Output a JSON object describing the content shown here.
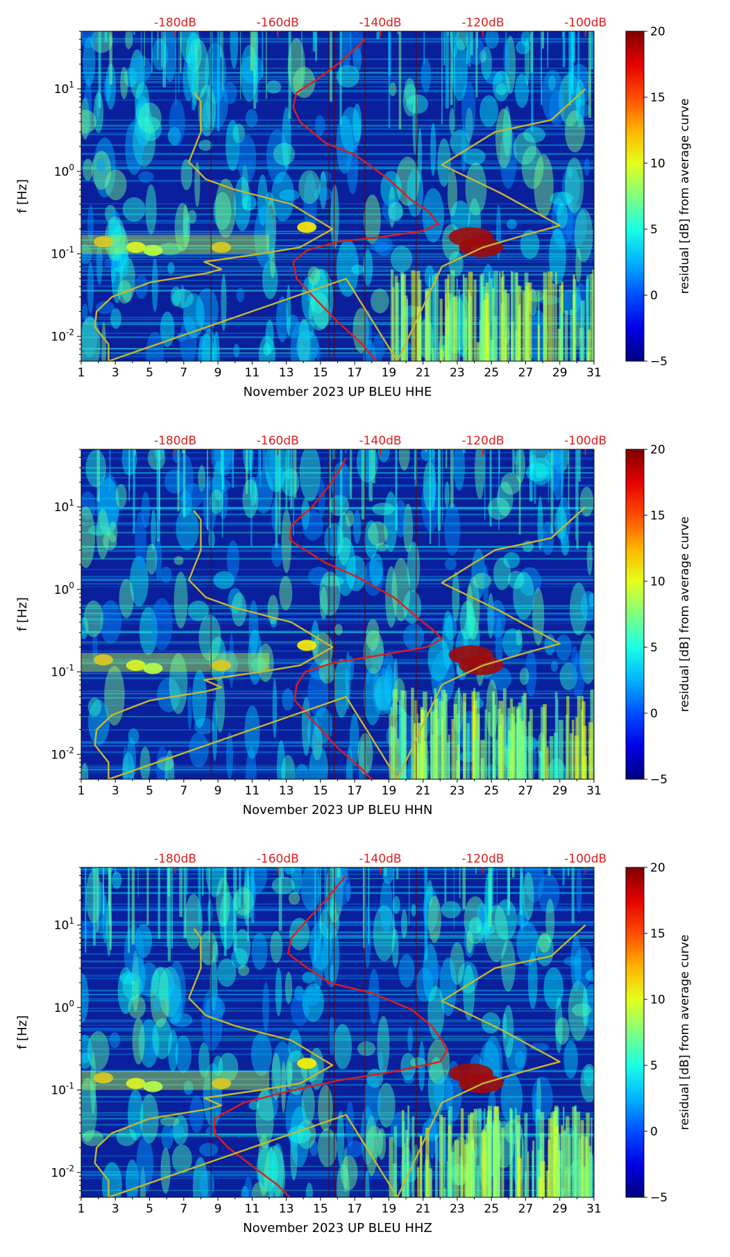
{
  "chart_data": [
    {
      "type": "heatmap",
      "title": "",
      "xlabel": "November 2023 UP BLEU  HHE",
      "ylabel": "f [Hz]",
      "x_ticks": [
        "1",
        "3",
        "5",
        "7",
        "9",
        "11",
        "13",
        "15",
        "17",
        "19",
        "21",
        "23",
        "25",
        "27",
        "29",
        "31"
      ],
      "y_ticks": [
        "10^-2",
        "10^-1",
        "10^0",
        "10^1"
      ],
      "y_range_hz": [
        0.005,
        50
      ],
      "top_axis_ticks": [
        "-180dB",
        "-160dB",
        "-140dB",
        "-120dB",
        "-100dB"
      ],
      "colorbar": {
        "label": "residual [dB] from average curve",
        "ticks": [
          "−5",
          "0",
          "5",
          "10",
          "15",
          "20"
        ],
        "range": [
          -5,
          20
        ]
      },
      "series": [
        {
          "name": "average PSD (red)",
          "color": "#e01b1b",
          "points_day_hz": [
            [
              17.6,
              40
            ],
            [
              17.0,
              30
            ],
            [
              16.0,
              20
            ],
            [
              14.8,
              13
            ],
            [
              13.6,
              9
            ],
            [
              13.4,
              6
            ],
            [
              13.8,
              4
            ],
            [
              14.2,
              3.4
            ],
            [
              15.3,
              2.2
            ],
            [
              17.0,
              1.6
            ],
            [
              19.0,
              0.8
            ],
            [
              20.3,
              0.45
            ],
            [
              21.3,
              0.33
            ],
            [
              21.9,
              0.23
            ],
            [
              21.0,
              0.19
            ],
            [
              18.5,
              0.16
            ],
            [
              16.0,
              0.14
            ],
            [
              14.2,
              0.11
            ],
            [
              13.4,
              0.08
            ],
            [
              13.6,
              0.05
            ],
            [
              14.6,
              0.03
            ],
            [
              16.0,
              0.015
            ],
            [
              17.2,
              0.009
            ],
            [
              18.3,
              0.005
            ]
          ]
        },
        {
          "name": "overlay curve (olive)",
          "color": "#c8b630",
          "points_day_hz": [
            [
              7.6,
              9
            ],
            [
              8.0,
              7
            ],
            [
              8.0,
              3
            ],
            [
              7.3,
              1.3
            ],
            [
              8.3,
              0.8
            ],
            [
              10.0,
              0.6
            ],
            [
              13.3,
              0.4
            ],
            [
              15.7,
              0.2
            ],
            [
              13.8,
              0.12
            ],
            [
              11.5,
              0.1
            ],
            [
              8.2,
              0.08
            ],
            [
              9.2,
              0.065
            ],
            [
              8.3,
              0.058
            ],
            [
              5.0,
              0.045
            ],
            [
              2.8,
              0.03
            ],
            [
              1.9,
              0.02
            ],
            [
              1.8,
              0.013
            ],
            [
              2.6,
              0.008
            ],
            [
              2.6,
              0.005
            ],
            [
              16.5,
              0.05
            ],
            [
              19.5,
              0.005
            ],
            [
              22.1,
              0.07
            ],
            [
              24.5,
              0.12
            ],
            [
              27.0,
              0.17
            ],
            [
              29.0,
              0.22
            ],
            [
              25.5,
              0.55
            ],
            [
              22.1,
              1.2
            ],
            [
              25.2,
              3
            ],
            [
              28.5,
              4.2
            ],
            [
              30.5,
              10
            ]
          ]
        }
      ]
    },
    {
      "type": "heatmap",
      "title": "",
      "xlabel": "November 2023 UP BLEU  HHN",
      "ylabel": "f [Hz]",
      "x_ticks": [
        "1",
        "3",
        "5",
        "7",
        "9",
        "11",
        "13",
        "15",
        "17",
        "19",
        "21",
        "23",
        "25",
        "27",
        "29",
        "31"
      ],
      "y_ticks": [
        "10^-2",
        "10^-1",
        "10^0",
        "10^1"
      ],
      "y_range_hz": [
        0.005,
        50
      ],
      "top_axis_ticks": [
        "-180dB",
        "-160dB",
        "-140dB",
        "-120dB",
        "-100dB"
      ],
      "colorbar": {
        "label": "residual [dB] from average curve",
        "ticks": [
          "−5",
          "0",
          "5",
          "10",
          "15",
          "20"
        ],
        "range": [
          -5,
          20
        ]
      },
      "series": [
        {
          "name": "average PSD (red)",
          "color": "#e01b1b",
          "points_day_hz": [
            [
              16.5,
              40
            ],
            [
              16.2,
              30
            ],
            [
              15.5,
              18
            ],
            [
              14.5,
              10
            ],
            [
              13.3,
              6
            ],
            [
              13.2,
              4
            ],
            [
              13.8,
              3.3
            ],
            [
              15.3,
              2.1
            ],
            [
              17.2,
              1.4
            ],
            [
              19.3,
              0.8
            ],
            [
              20.7,
              0.45
            ],
            [
              21.6,
              0.32
            ],
            [
              22.1,
              0.25
            ],
            [
              21.2,
              0.2
            ],
            [
              18.5,
              0.16
            ],
            [
              15.8,
              0.13
            ],
            [
              14.1,
              0.1
            ],
            [
              13.6,
              0.07
            ],
            [
              13.5,
              0.045
            ],
            [
              14.6,
              0.025
            ],
            [
              16.0,
              0.012
            ],
            [
              17.3,
              0.007
            ],
            [
              18.0,
              0.005
            ]
          ]
        },
        {
          "name": "overlay curve (olive)",
          "color": "#c8b630",
          "points_day_hz": [
            [
              7.6,
              9
            ],
            [
              8.0,
              7
            ],
            [
              8.0,
              3
            ],
            [
              7.3,
              1.3
            ],
            [
              8.3,
              0.8
            ],
            [
              10.0,
              0.6
            ],
            [
              13.3,
              0.4
            ],
            [
              15.7,
              0.2
            ],
            [
              13.8,
              0.12
            ],
            [
              11.5,
              0.1
            ],
            [
              8.2,
              0.08
            ],
            [
              9.2,
              0.065
            ],
            [
              8.3,
              0.058
            ],
            [
              5.0,
              0.045
            ],
            [
              2.8,
              0.03
            ],
            [
              1.9,
              0.02
            ],
            [
              1.8,
              0.013
            ],
            [
              2.6,
              0.008
            ],
            [
              2.6,
              0.005
            ],
            [
              16.5,
              0.05
            ],
            [
              19.5,
              0.005
            ],
            [
              22.1,
              0.07
            ],
            [
              24.5,
              0.12
            ],
            [
              27.0,
              0.17
            ],
            [
              29.0,
              0.22
            ],
            [
              25.5,
              0.55
            ],
            [
              22.1,
              1.2
            ],
            [
              25.2,
              3
            ],
            [
              28.5,
              4.2
            ],
            [
              30.5,
              10
            ]
          ]
        }
      ]
    },
    {
      "type": "heatmap",
      "title": "",
      "xlabel": "November 2023 UP BLEU  HHZ",
      "ylabel": "f [Hz]",
      "x_ticks": [
        "1",
        "3",
        "5",
        "7",
        "9",
        "11",
        "13",
        "15",
        "17",
        "19",
        "21",
        "23",
        "25",
        "27",
        "29",
        "31"
      ],
      "y_ticks": [
        "10^-2",
        "10^-1",
        "10^0",
        "10^1"
      ],
      "y_range_hz": [
        0.005,
        50
      ],
      "top_axis_ticks": [
        "-180dB",
        "-160dB",
        "-140dB",
        "-120dB",
        "-100dB"
      ],
      "colorbar": {
        "label": "residual [dB] from average curve",
        "ticks": [
          "−5",
          "0",
          "5",
          "10",
          "15",
          "20"
        ],
        "range": [
          -5,
          20
        ]
      },
      "series": [
        {
          "name": "average PSD (red)",
          "color": "#e01b1b",
          "points_day_hz": [
            [
              16.5,
              40
            ],
            [
              16.0,
              30
            ],
            [
              15.3,
              20
            ],
            [
              14.3,
              12
            ],
            [
              13.3,
              7
            ],
            [
              13.1,
              4.5
            ],
            [
              13.8,
              3.5
            ],
            [
              15.5,
              2.0
            ],
            [
              18.0,
              1.5
            ],
            [
              20.3,
              0.95
            ],
            [
              21.5,
              0.6
            ],
            [
              22.1,
              0.4
            ],
            [
              22.4,
              0.3
            ],
            [
              22.0,
              0.22
            ],
            [
              19.5,
              0.17
            ],
            [
              16.0,
              0.13
            ],
            [
              13.0,
              0.095
            ],
            [
              10.5,
              0.07
            ],
            [
              8.8,
              0.045
            ],
            [
              8.8,
              0.03
            ],
            [
              9.6,
              0.02
            ],
            [
              11.0,
              0.012
            ],
            [
              12.5,
              0.007
            ],
            [
              13.2,
              0.005
            ]
          ]
        },
        {
          "name": "overlay curve (olive)",
          "color": "#c8b630",
          "points_day_hz": [
            [
              7.6,
              9
            ],
            [
              8.0,
              7
            ],
            [
              8.0,
              3
            ],
            [
              7.3,
              1.3
            ],
            [
              8.3,
              0.8
            ],
            [
              10.0,
              0.6
            ],
            [
              13.3,
              0.4
            ],
            [
              15.7,
              0.2
            ],
            [
              13.8,
              0.12
            ],
            [
              11.5,
              0.1
            ],
            [
              8.2,
              0.08
            ],
            [
              9.2,
              0.065
            ],
            [
              8.3,
              0.058
            ],
            [
              5.0,
              0.045
            ],
            [
              2.8,
              0.03
            ],
            [
              1.9,
              0.02
            ],
            [
              1.8,
              0.013
            ],
            [
              2.6,
              0.008
            ],
            [
              2.6,
              0.005
            ],
            [
              16.5,
              0.05
            ],
            [
              19.5,
              0.005
            ],
            [
              22.1,
              0.07
            ],
            [
              24.5,
              0.12
            ],
            [
              27.0,
              0.17
            ],
            [
              29.0,
              0.22
            ],
            [
              25.5,
              0.55
            ],
            [
              22.1,
              1.2
            ],
            [
              25.2,
              3
            ],
            [
              28.5,
              4.2
            ],
            [
              30.5,
              10
            ]
          ]
        }
      ]
    }
  ]
}
